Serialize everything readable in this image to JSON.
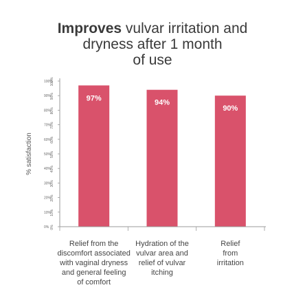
{
  "chart_data": {
    "type": "bar",
    "title": {
      "lines": [
        "Improves vulvar irritation and",
        "dryness after 1 month",
        "of use"
      ],
      "bold_prefix": "Improves"
    },
    "ylabel": "% satisfaction",
    "ylim": [
      0,
      100
    ],
    "yticks": [
      0,
      10,
      20,
      30,
      40,
      50,
      60,
      70,
      80,
      90,
      100
    ],
    "ytick_labels": [
      "0%",
      "10%",
      "20%",
      "30%",
      "40%",
      "50%",
      "60%",
      "70%",
      "80%",
      "90%",
      "100%"
    ],
    "categories": [
      [
        "Relief from the",
        "discomfort associated",
        "with vaginal dryness",
        "and general feeling",
        "of comfort"
      ],
      [
        "Hydration of the",
        "vulvar area and",
        "relief of vulvar",
        "itching"
      ],
      [
        "Relief",
        "from",
        "irritation"
      ]
    ],
    "values": [
      97,
      94,
      90
    ],
    "data_labels": [
      "97%",
      "94%",
      "90%"
    ],
    "bar_color": "#d9526b",
    "grid": false,
    "legend": "none"
  }
}
